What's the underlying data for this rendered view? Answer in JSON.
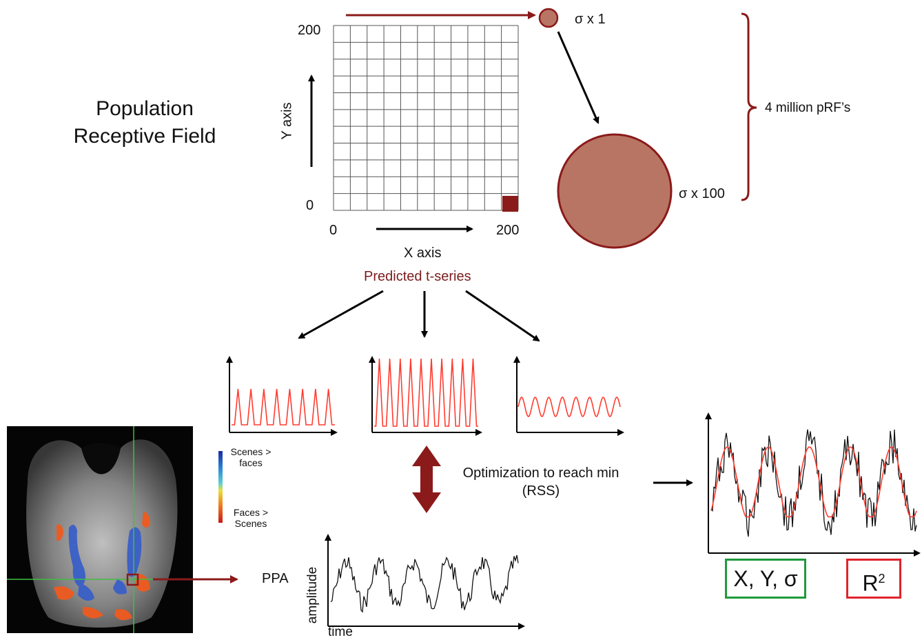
{
  "title_line1": "Population",
  "title_line2": "Receptive Field",
  "grid": {
    "y_max": "200",
    "y_min": "0",
    "x_min": "0",
    "x_max": "200",
    "x_axis": "X axis",
    "y_axis": "Y axis",
    "cells": 11
  },
  "sigma_small": "σ  x 1",
  "sigma_large": "σ  x 100",
  "brace_label": "4 million pRF’s",
  "predicted": "Predicted t-series",
  "legend": {
    "top": [
      "Scenes >",
      "faces"
    ],
    "bottom": [
      "Faces >",
      "Scenes"
    ]
  },
  "optimization": [
    "Optimization to reach min",
    "(RSS)"
  ],
  "ppa": "PPA",
  "bottom_axes": {
    "y": "amplitude",
    "x": "time"
  },
  "result_params": "X, Y, σ",
  "result_r": "R",
  "result_r_sup": "2",
  "colors": {
    "maroon": "#8b1a1a",
    "disc_fill": "#b87563",
    "prediction": "#ff3b2f",
    "green_box": "#1f9a3c",
    "red_box": "#e0232b"
  }
}
